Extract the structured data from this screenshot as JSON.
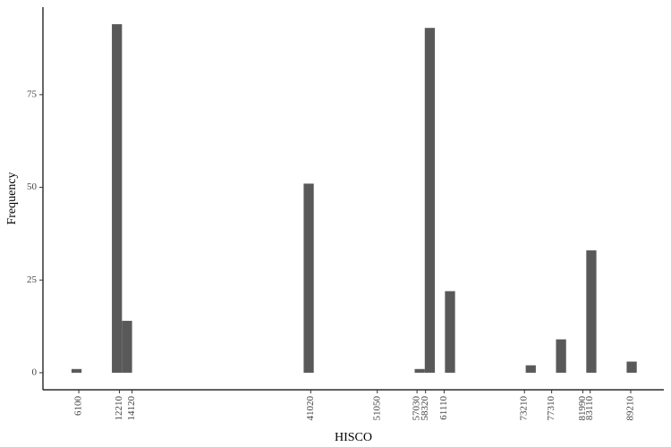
{
  "chart_data": {
    "type": "histogram",
    "x_label": "HISCO",
    "y_label": "Frequency",
    "color": "#595959",
    "bins": [
      5000,
      6520,
      8040,
      9560,
      11080,
      12600,
      14120,
      15640,
      17160,
      18680,
      20200,
      21720,
      23240,
      24760,
      26280,
      27800,
      29320,
      30840,
      32360,
      33880,
      35400,
      36920,
      38440,
      39960,
      41480,
      43000,
      44520,
      46040,
      47560,
      49080,
      50600,
      52120,
      53640,
      55160,
      56680,
      58200,
      59720,
      61240,
      62760,
      64280,
      65800,
      67320,
      68840,
      70360,
      71880,
      73400,
      74920,
      76440,
      77960,
      79480,
      81000,
      82520,
      84040,
      85560,
      87080,
      88600,
      90120
    ],
    "values": [
      1,
      0,
      0,
      0,
      94,
      14,
      0,
      0,
      0,
      0,
      0,
      0,
      0,
      0,
      0,
      0,
      0,
      0,
      0,
      0,
      0,
      0,
      0,
      51,
      0,
      0,
      0,
      0,
      0,
      0,
      0,
      0,
      0,
      0,
      1,
      93,
      0,
      22,
      0,
      0,
      0,
      0,
      0,
      0,
      0,
      2,
      0,
      0,
      9,
      0,
      0,
      33,
      0,
      0,
      0,
      3
    ],
    "xlim": [
      700,
      94200
    ],
    "xticks": [
      6100,
      12210,
      14120,
      41020,
      51050,
      57030,
      58320,
      61110,
      73210,
      77310,
      81990,
      83110,
      89210
    ],
    "ylim": [
      -4.6,
      98.6
    ],
    "yticks": [
      0,
      25,
      50,
      75
    ],
    "grid": false
  }
}
